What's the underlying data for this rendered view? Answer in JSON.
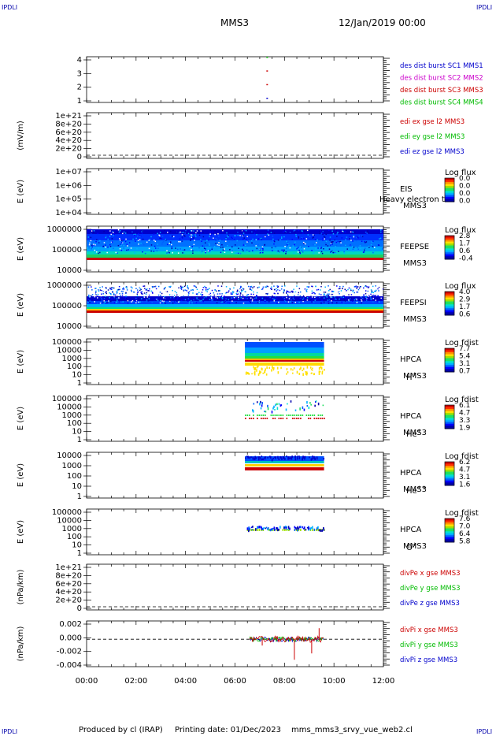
{
  "corners": {
    "tl": "IPDLI",
    "tr": "IPDLI",
    "bl": "IPDLI",
    "br": "IPDLI"
  },
  "header": {
    "title": "MMS3",
    "datetime": "12/Jan/2019 00:00"
  },
  "footer": {
    "producer": "Produced by cl (IRAP)",
    "printing_date": "Printing date: 01/Dec/2023",
    "filename": "mms_mms3_srvy_vue_web2.cl"
  },
  "time_axis": {
    "ticks": [
      "00:00",
      "02:00",
      "04:00",
      "06:00",
      "08:00",
      "10:00",
      "12:00"
    ],
    "range_hours": [
      0,
      12
    ]
  },
  "chart_data": [
    {
      "type": "scatter",
      "id": "p1",
      "ylabel": "",
      "yticks": [
        "1",
        "2",
        "3",
        "4"
      ],
      "ylim": [
        0.5,
        4.5
      ],
      "legend": [
        {
          "name": "des dist burst SC1 MMS1",
          "color": "#0000cc"
        },
        {
          "name": "des dist burst SC2 MMS2",
          "color": "#cc00cc"
        },
        {
          "name": "des dist burst SC3 MMS3",
          "color": "#cc0000"
        },
        {
          "name": "des dist burst SC4 MMS4",
          "color": "#00bb00"
        }
      ],
      "points": [
        {
          "x": 7.3,
          "y": 1,
          "series": 0
        },
        {
          "x": 7.3,
          "y": 2,
          "series": 2
        },
        {
          "x": 7.3,
          "y": 3,
          "series": 2
        },
        {
          "x": 7.3,
          "y": 4,
          "series": 3
        }
      ]
    },
    {
      "type": "line",
      "id": "p2",
      "ylabel": "(mV/m)",
      "yticks": [
        "0",
        "2e+20",
        "4e+20",
        "6e+20",
        "8e+20",
        "1e+21"
      ],
      "ylim": [
        0,
        1e+21
      ],
      "legend": [
        {
          "name": "edi ex gse l2 MMS3",
          "color": "#cc0000"
        },
        {
          "name": "edi ey gse l2 MMS3",
          "color": "#00bb00"
        },
        {
          "name": "edi ez gse l2 MMS3",
          "color": "#0000cc"
        }
      ],
      "zero_line": true
    },
    {
      "type": "heatmap",
      "id": "p3",
      "ylabel": "E (eV)",
      "yticks": [
        "1e+04",
        "1e+05",
        "1e+06",
        "1e+07"
      ],
      "log": true,
      "label_lines": [
        "EIS",
        "MMS3"
      ],
      "overlay_text": "Heavy electron tof",
      "colorbar": {
        "title": "Log flux",
        "ticks": [
          "0.0",
          "0.0",
          "0.0",
          "0.0"
        ]
      }
    },
    {
      "type": "heatmap",
      "id": "p4",
      "ylabel": "E (eV)",
      "yticks": [
        "10000",
        "100000",
        "1000000"
      ],
      "log": true,
      "label_lines": [
        "FEEPSE",
        "MMS3"
      ],
      "colorbar": {
        "title": "Log flux",
        "ticks": [
          "2.8",
          "1.7",
          "0.6",
          "-0.4"
        ]
      },
      "coverage_hours": [
        0,
        12
      ]
    },
    {
      "type": "heatmap",
      "id": "p5",
      "ylabel": "E (eV)",
      "yticks": [
        "10000",
        "100000",
        "1000000"
      ],
      "log": true,
      "label_lines": [
        "FEEPSI",
        "MMS3"
      ],
      "colorbar": {
        "title": "Log flux",
        "ticks": [
          "4.0",
          "2.9",
          "1.7",
          "0.6"
        ]
      },
      "coverage_hours": [
        0,
        12
      ]
    },
    {
      "type": "heatmap",
      "id": "p6",
      "ylabel": "E (eV)",
      "yticks": [
        "1",
        "10",
        "100",
        "1000",
        "10000",
        "100000"
      ],
      "log": true,
      "label_lines": [
        "HPCA",
        "MMS3"
      ],
      "species": "H",
      "species_sup": "+",
      "colorbar": {
        "title": "Log fdist",
        "ticks": [
          "7.7",
          "5.4",
          "3.1",
          "0.7"
        ]
      },
      "coverage_hours": [
        6.4,
        9.6
      ]
    },
    {
      "type": "heatmap",
      "id": "p7",
      "ylabel": "E (eV)",
      "yticks": [
        "1",
        "10",
        "100",
        "1000",
        "10000",
        "100000"
      ],
      "log": true,
      "label_lines": [
        "HPCA",
        "MMS3"
      ],
      "species": "He",
      "species_sup": "+",
      "colorbar": {
        "title": "Log fdist",
        "ticks": [
          "6.1",
          "4.7",
          "3.3",
          "1.9"
        ]
      },
      "coverage_hours": [
        6.4,
        9.6
      ]
    },
    {
      "type": "heatmap",
      "id": "p8",
      "ylabel": "E (eV)",
      "yticks": [
        "1",
        "10",
        "100",
        "1000",
        "10000"
      ],
      "log": true,
      "label_lines": [
        "HPCA",
        "MMS3"
      ],
      "species": "He",
      "species_sup": "++",
      "colorbar": {
        "title": "Log fdist",
        "ticks": [
          "6.2",
          "4.7",
          "3.1",
          "1.6"
        ]
      },
      "coverage_hours": [
        6.4,
        9.6
      ]
    },
    {
      "type": "heatmap",
      "id": "p9",
      "ylabel": "E (eV)",
      "yticks": [
        "1",
        "10",
        "100",
        "1000",
        "10000",
        "100000"
      ],
      "log": true,
      "label_lines": [
        "HPCA",
        "MMS3"
      ],
      "species": "O",
      "species_sup": "+",
      "colorbar": {
        "title": "Log fdist",
        "ticks": [
          "7.6",
          "7.0",
          "6.4",
          "5.8"
        ]
      },
      "coverage_hours": [
        6.4,
        9.6
      ]
    },
    {
      "type": "line",
      "id": "p10",
      "ylabel": "(nPa/km)",
      "yticks": [
        "0",
        "2e+20",
        "4e+20",
        "6e+20",
        "8e+20",
        "1e+21"
      ],
      "ylim": [
        0,
        1e+21
      ],
      "legend": [
        {
          "name": "divPe x gse MMS3",
          "color": "#cc0000"
        },
        {
          "name": "divPe y gse MMS3",
          "color": "#00bb00"
        },
        {
          "name": "divPe z gse MMS3",
          "color": "#0000cc"
        }
      ],
      "zero_line": true
    },
    {
      "type": "line",
      "id": "p11",
      "ylabel": "(nPa/km)",
      "yticks": [
        "-0.004",
        "-0.002",
        "0.000",
        "0.002"
      ],
      "ylim": [
        -0.0045,
        0.003
      ],
      "legend": [
        {
          "name": "divPi x gse MMS3",
          "color": "#cc0000"
        },
        {
          "name": "divPi y gse MMS3",
          "color": "#00bb00"
        },
        {
          "name": "divPi z gse MMS3",
          "color": "#0000cc"
        }
      ],
      "zero_line": true,
      "coverage_hours": [
        6.6,
        9.6
      ]
    }
  ]
}
